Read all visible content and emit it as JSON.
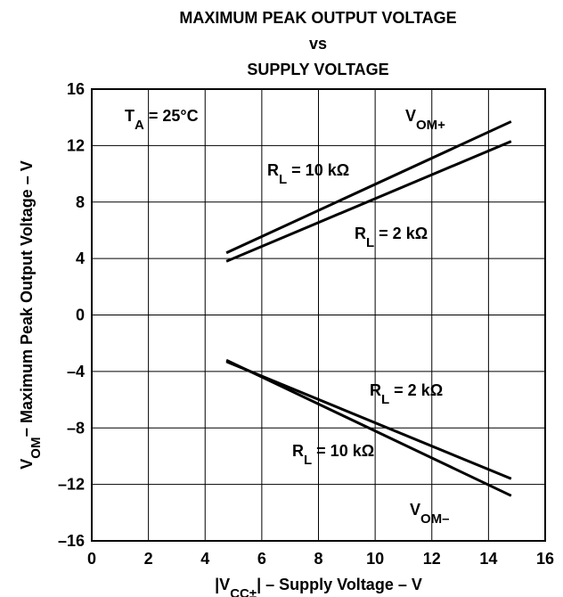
{
  "chart_data": {
    "type": "line",
    "title": [
      "MAXIMUM PEAK OUTPUT VOLTAGE",
      "vs",
      "SUPPLY VOLTAGE"
    ],
    "x_label": [
      "|V",
      "CC±",
      "| – Supply Voltage – V"
    ],
    "y_label": [
      "V",
      "OM",
      "− Maximum Peak Output Voltage – V"
    ],
    "annotations": [
      [
        "T",
        "A",
        " = 25°C"
      ],
      [
        "V",
        "OM+"
      ],
      [
        "R",
        "L",
        " = 10 kΩ"
      ],
      [
        "R",
        "L",
        " = 2 kΩ"
      ],
      [
        "R",
        "L",
        " = 2 kΩ"
      ],
      [
        "R",
        "L",
        " = 10 kΩ"
      ],
      [
        "V",
        "OM–"
      ]
    ],
    "x": [
      4.75,
      14.8
    ],
    "series": [
      {
        "color": "#000000",
        "values": [
          4.4,
          13.7
        ]
      },
      {
        "color": "#000000",
        "values": [
          3.8,
          12.3
        ]
      },
      {
        "color": "#000000",
        "values": [
          -3.3,
          -11.6
        ]
      },
      {
        "color": "#000000",
        "values": [
          -3.2,
          -12.8
        ]
      }
    ],
    "xlim": [
      0,
      16
    ],
    "xticks": [
      0,
      2,
      4,
      6,
      8,
      10,
      12,
      14,
      16
    ],
    "ylim": [
      -16,
      16
    ],
    "yticks": [
      {
        "value": -16,
        "label": "–16"
      },
      {
        "value": -12,
        "label": "–12"
      },
      {
        "value": -8,
        "label": "–8"
      },
      {
        "value": -4,
        "label": "–4"
      },
      0,
      4,
      8,
      12,
      16
    ],
    "grid": true
  }
}
